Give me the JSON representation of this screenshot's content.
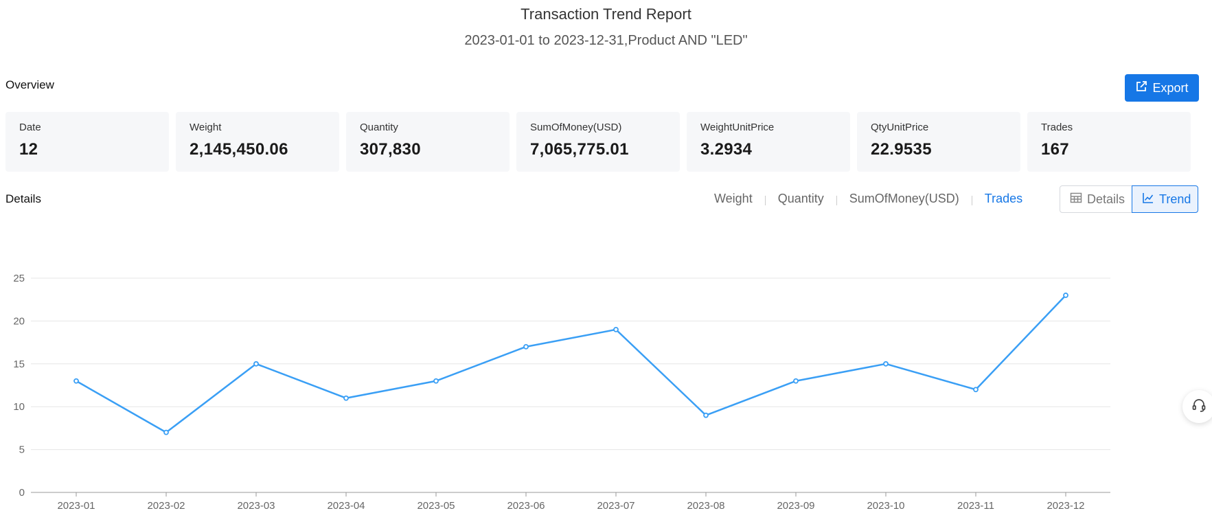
{
  "header": {
    "title": "Transaction Trend Report",
    "subtitle": "2023-01-01 to 2023-12-31,Product AND \"LED\""
  },
  "overview": {
    "label": "Overview",
    "export_label": "Export",
    "cards": [
      {
        "label": "Date",
        "value": "12"
      },
      {
        "label": "Weight",
        "value": "2,145,450.06"
      },
      {
        "label": "Quantity",
        "value": "307,830"
      },
      {
        "label": "SumOfMoney(USD)",
        "value": "7,065,775.01"
      },
      {
        "label": "WeightUnitPrice",
        "value": "3.2934"
      },
      {
        "label": "QtyUnitPrice",
        "value": "22.9535"
      },
      {
        "label": "Trades",
        "value": "167"
      }
    ]
  },
  "details": {
    "label": "Details",
    "metric_tabs": [
      "Weight",
      "Quantity",
      "SumOfMoney(USD)",
      "Trades"
    ],
    "active_metric": "Trades",
    "view_toggle": {
      "details_label": "Details",
      "trend_label": "Trend",
      "active": "Trend"
    }
  },
  "colors": {
    "accent": "#1677e6",
    "line": "#3a9ff5"
  },
  "icons": {
    "export": "external-link-icon",
    "details": "table-icon",
    "trend": "line-chart-icon",
    "support": "headset-icon"
  },
  "chart_data": {
    "type": "line",
    "categories": [
      "2023-01",
      "2023-02",
      "2023-03",
      "2023-04",
      "2023-05",
      "2023-06",
      "2023-07",
      "2023-08",
      "2023-09",
      "2023-10",
      "2023-11",
      "2023-12"
    ],
    "series": [
      {
        "values": [
          13,
          7,
          15,
          11,
          13,
          17,
          19,
          9,
          13,
          15,
          12,
          23
        ]
      }
    ],
    "y_ticks": [
      0,
      5,
      10,
      15,
      20,
      25
    ],
    "ylim": [
      0,
      25
    ],
    "grid": true,
    "xlabel": "",
    "ylabel": ""
  }
}
